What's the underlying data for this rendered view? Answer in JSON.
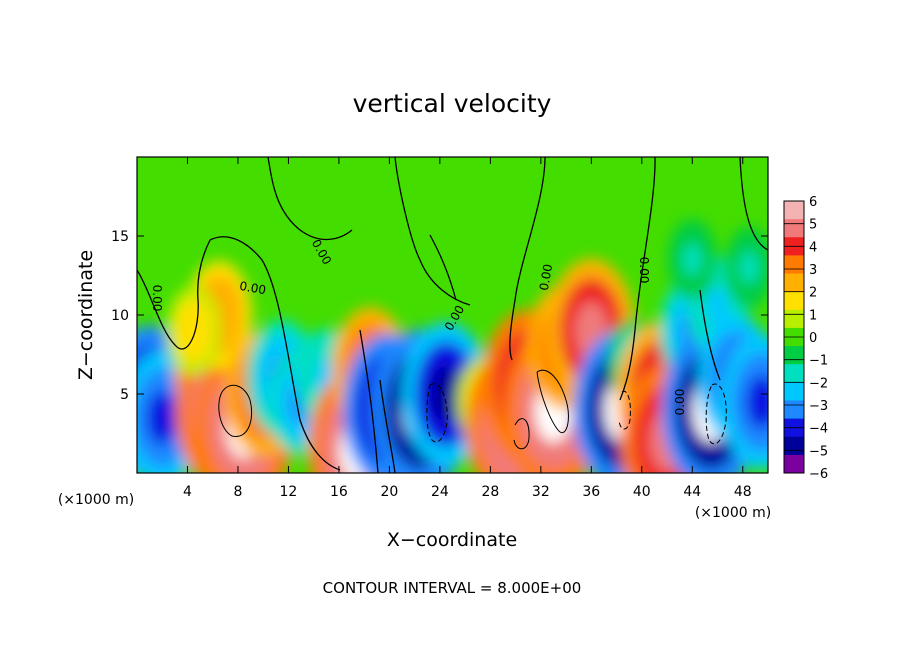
{
  "chart_data": {
    "type": "heatmap",
    "title": "vertical velocity",
    "xlabel": "X−coordinate",
    "ylabel": "Z−coordinate",
    "x_unit": "(×1000 m)",
    "y_unit": "(×1000 m)",
    "xlim": [
      0,
      50
    ],
    "ylim": [
      0,
      20
    ],
    "x_ticks": [
      4,
      8,
      12,
      16,
      20,
      24,
      28,
      32,
      36,
      40,
      44,
      48
    ],
    "y_ticks": [
      5,
      10,
      15
    ],
    "contour_label": "0.00",
    "contour_interval_text": "CONTOUR INTERVAL = 8.000E+00",
    "colorbar": {
      "ticks": [
        "6",
        "5",
        "4",
        "3",
        "2",
        "1",
        "0",
        "−1",
        "−2",
        "−3",
        "−4",
        "−5",
        "−6"
      ],
      "range": [
        -6,
        6
      ],
      "colors": [
        "#f4b3b3",
        "#f07a7a",
        "#ee2020",
        "#ff7a00",
        "#ffb000",
        "#ffe000",
        "#b8ee00",
        "#44dd00",
        "#00cc44",
        "#00e0c0",
        "#00c8ff",
        "#1e88ff",
        "#1010e0",
        "#00009a",
        "#7a00a0"
      ]
    },
    "cells": [
      {
        "x": 1.0,
        "z": 4.5,
        "w": -5.5
      },
      {
        "x": 2.0,
        "z": 3.5,
        "w": -4.5
      },
      {
        "x": 6.0,
        "z": 6.5,
        "w": 4.0
      },
      {
        "x": 7.0,
        "z": 4.0,
        "w": 6.0
      },
      {
        "x": 8.5,
        "z": 3.0,
        "w": 6.0
      },
      {
        "x": 6.5,
        "z": 10.0,
        "w": 3.0
      },
      {
        "x": 4.5,
        "z": 9.0,
        "w": 2.0
      },
      {
        "x": 10.0,
        "z": 5.0,
        "w": 4.0
      },
      {
        "x": 11.5,
        "z": 6.0,
        "w": -3.5
      },
      {
        "x": 13.0,
        "z": 4.5,
        "w": -3.0
      },
      {
        "x": 15.0,
        "z": 6.0,
        "w": -2.5
      },
      {
        "x": 17.5,
        "z": 1.5,
        "w": 6.0
      },
      {
        "x": 18.5,
        "z": 6.5,
        "w": 4.0
      },
      {
        "x": 20.0,
        "z": 4.0,
        "w": -5.5
      },
      {
        "x": 22.5,
        "z": 4.0,
        "w": -6.0
      },
      {
        "x": 24.5,
        "z": 5.0,
        "w": -5.0
      },
      {
        "x": 27.5,
        "z": 4.5,
        "w": 2.0
      },
      {
        "x": 30.0,
        "z": 3.0,
        "w": 6.0
      },
      {
        "x": 31.0,
        "z": 5.5,
        "w": 5.5
      },
      {
        "x": 33.0,
        "z": 4.0,
        "w": 6.0
      },
      {
        "x": 34.0,
        "z": 8.0,
        "w": 4.0
      },
      {
        "x": 36.0,
        "z": 9.0,
        "w": 5.0
      },
      {
        "x": 37.0,
        "z": 5.0,
        "w": 2.0
      },
      {
        "x": 38.5,
        "z": 4.0,
        "w": -6.0
      },
      {
        "x": 39.5,
        "z": 7.0,
        "w": -2.0
      },
      {
        "x": 41.5,
        "z": 5.0,
        "w": 5.0
      },
      {
        "x": 42.0,
        "z": 2.0,
        "w": 5.5
      },
      {
        "x": 44.0,
        "z": 9.0,
        "w": -3.0
      },
      {
        "x": 45.5,
        "z": 4.0,
        "w": -6.0
      },
      {
        "x": 46.0,
        "z": 10.5,
        "w": -2.5
      },
      {
        "x": 47.5,
        "z": 6.0,
        "w": -4.0
      },
      {
        "x": 49.5,
        "z": 4.5,
        "w": -4.5
      },
      {
        "x": 48.5,
        "z": 13.0,
        "w": -1.5
      },
      {
        "x": 44.0,
        "z": 13.5,
        "w": -1.5
      }
    ]
  }
}
